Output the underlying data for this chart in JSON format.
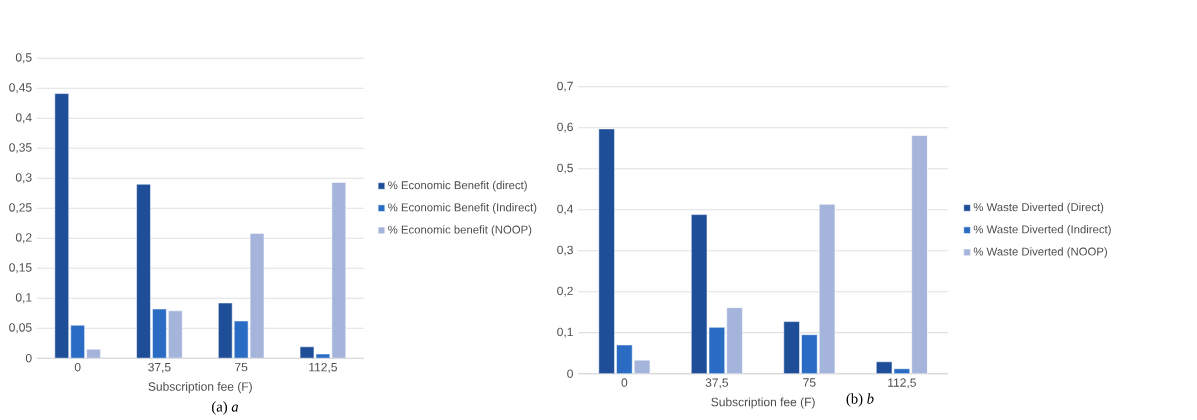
{
  "chart_data": [
    {
      "type": "bar",
      "categories": [
        "0",
        "37,5",
        "75",
        "112,5"
      ],
      "xlabel": "Subscription fee (F)",
      "ylim": [
        0,
        0.5
      ],
      "yticks": [
        0,
        {
          "value": 0.05,
          "label": "0,05"
        },
        {
          "value": 0.1,
          "label": "0,1"
        },
        {
          "value": 0.15,
          "label": "0,15"
        },
        {
          "value": 0.2,
          "label": "0,2"
        },
        {
          "value": 0.25,
          "label": "0,25"
        },
        {
          "value": 0.3,
          "label": "0,3"
        },
        {
          "value": 0.35,
          "label": "0,35"
        },
        {
          "value": 0.4,
          "label": "0,4"
        },
        {
          "value": 0.45,
          "label": "0,45"
        },
        {
          "value": 0.5,
          "label": "0,5"
        }
      ],
      "grid": "y",
      "legend": "right",
      "annotations": [
        "(a) *a*"
      ],
      "series": [
        {
          "name": "% Economic Benefit (direct)",
          "color": "#1f4e99",
          "values": [
            0.441,
            0.29,
            0.092,
            0.019
          ]
        },
        {
          "name": "% Economic Benefit (Indirect)",
          "color": "#2a6cc4",
          "values": [
            0.055,
            0.082,
            0.062,
            0.007
          ]
        },
        {
          "name": "% Economic benefit (NOOP)",
          "color": "#a5b4da",
          "values": [
            0.015,
            0.079,
            0.208,
            0.293
          ]
        }
      ]
    },
    {
      "type": "bar",
      "categories": [
        "0",
        "37,5",
        "75",
        "112,5"
      ],
      "xlabel": "Subscription fee (F)",
      "ylim": [
        0,
        0.7
      ],
      "yticks": [
        0,
        {
          "value": 0.1,
          "label": "0,1"
        },
        {
          "value": 0.2,
          "label": "0,2"
        },
        {
          "value": 0.3,
          "label": "0,3"
        },
        {
          "value": 0.4,
          "label": "0,4"
        },
        {
          "value": 0.5,
          "label": "0,5"
        },
        {
          "value": 0.6,
          "label": "0,6"
        },
        {
          "value": 0.7,
          "label": "0,7"
        }
      ],
      "grid": "y",
      "legend": "right",
      "annotations": [
        "(b) *b*"
      ],
      "series": [
        {
          "name": "% Waste Diverted (Direct)",
          "color": "#1f4e99",
          "values": [
            0.597,
            0.388,
            0.127,
            0.029
          ]
        },
        {
          "name": "% Waste Diverted (Indirect)",
          "color": "#2a6cc4",
          "values": [
            0.07,
            0.113,
            0.095,
            0.012
          ]
        },
        {
          "name": "% Waste Diverted (NOOP)",
          "color": "#a5b4da",
          "values": [
            0.033,
            0.161,
            0.413,
            0.581
          ]
        }
      ]
    }
  ]
}
